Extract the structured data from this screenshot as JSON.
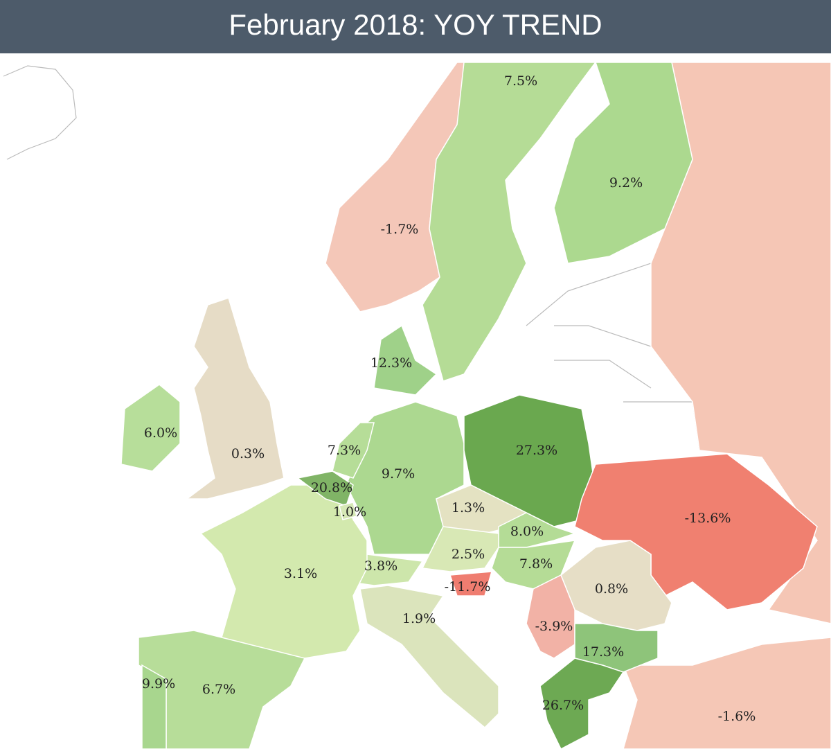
{
  "header": {
    "title": "February 2018: YOY TREND"
  },
  "regions": [
    {
      "label": "7.5%",
      "color": "#b5dc96"
    },
    {
      "label": "9.2%",
      "color": "#acd98f"
    },
    {
      "label": "-1.7%",
      "color": "#f4c7b8"
    },
    {
      "label": "12.3%",
      "color": "#9fd189"
    },
    {
      "label": "6.0%",
      "color": "#b7de9a"
    },
    {
      "label": "0.3%",
      "color": "#e6dcc6"
    },
    {
      "label": "7.3%",
      "color": "#b6dd98"
    },
    {
      "label": "9.7%",
      "color": "#acd890"
    },
    {
      "label": "27.3%",
      "color": "#6aa84f"
    },
    {
      "label": "20.8%",
      "color": "#80b466"
    },
    {
      "label": "1.0%",
      "color": "#d6e8b6"
    },
    {
      "label": "1.3%",
      "color": "#e4e2c2"
    },
    {
      "label": "-13.6%",
      "color": "#f08070"
    },
    {
      "label": "8.0%",
      "color": "#b4dc96"
    },
    {
      "label": "2.5%",
      "color": "#d8e8b5"
    },
    {
      "label": "7.8%",
      "color": "#b5dc96"
    },
    {
      "label": "3.1%",
      "color": "#d3e9ae"
    },
    {
      "label": "3.8%",
      "color": "#cde6ab"
    },
    {
      "label": "-11.7%",
      "color": "#ef7d70"
    },
    {
      "label": "0.8%",
      "color": "#e6dec6"
    },
    {
      "label": "1.9%",
      "color": "#dbe4bc"
    },
    {
      "label": "-3.9%",
      "color": "#f2b2a6"
    },
    {
      "label": "17.3%",
      "color": "#8ec47a"
    },
    {
      "label": "9.9%",
      "color": "#a8d68e"
    },
    {
      "label": "6.7%",
      "color": "#b7dd99"
    },
    {
      "label": "26.7%",
      "color": "#6da953"
    },
    {
      "label": "-1.6%",
      "color": "#f5c7b6"
    },
    {
      "label": "",
      "color": "#f5c6b5"
    }
  ]
}
